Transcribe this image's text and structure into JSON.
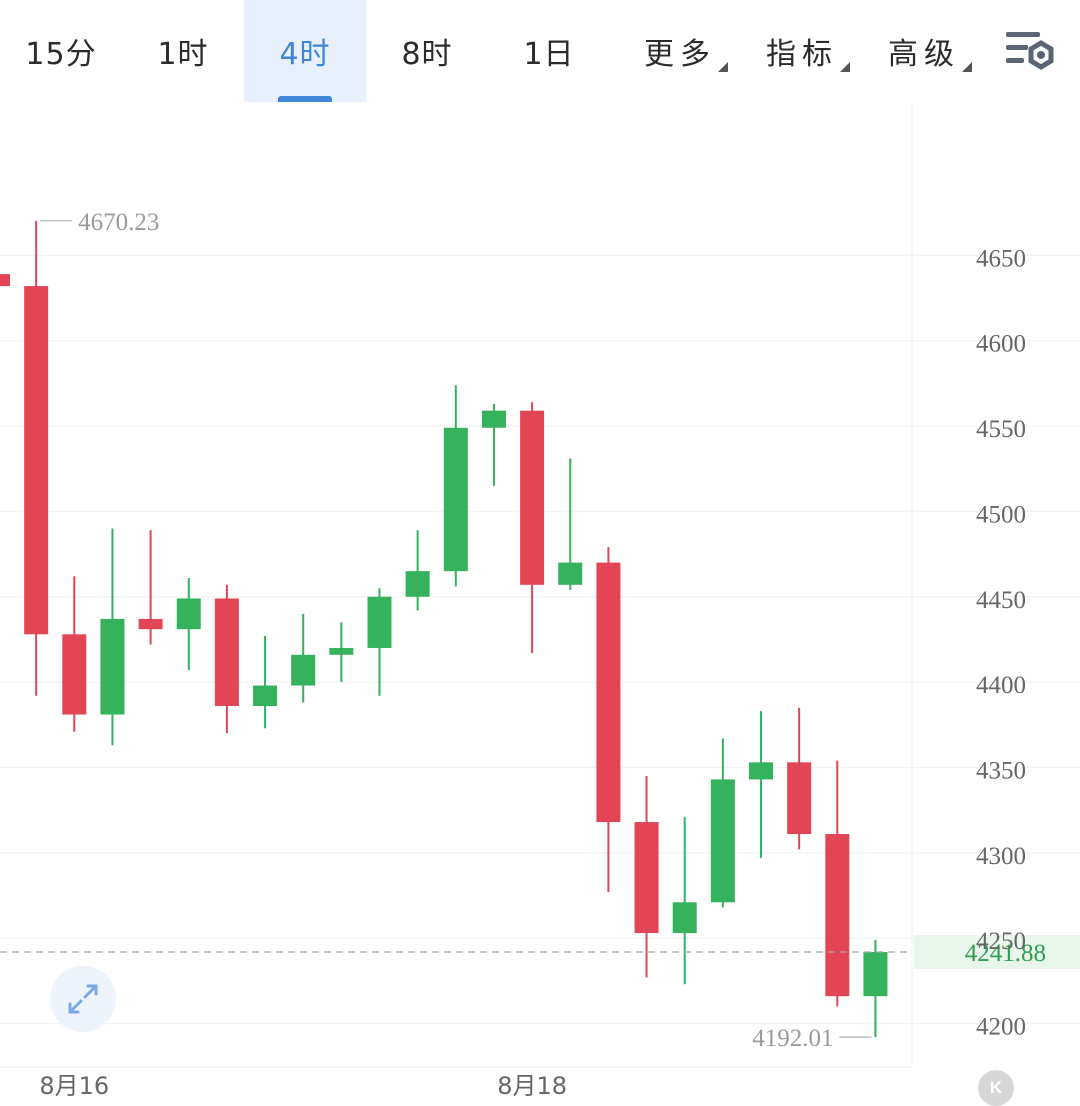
{
  "toolbar": {
    "tabs": [
      {
        "label": "15分"
      },
      {
        "label": "1时"
      },
      {
        "label": "4时"
      },
      {
        "label": "8时"
      },
      {
        "label": "1日"
      }
    ],
    "active_tab": "4时",
    "dropdowns": [
      {
        "label": "更多"
      },
      {
        "label": "指标"
      },
      {
        "label": "高级"
      }
    ],
    "settings_icon": "chart-settings-gear-icon"
  },
  "colors": {
    "up": "#35b25c",
    "down": "#e24654",
    "accent": "#3f86d8",
    "current_price_bg": "#e8f6ec",
    "current_price_text": "#2fa04f",
    "axis_text": "#666666",
    "annotation_text": "#9a9a9a"
  },
  "chart_data": {
    "type": "candlestick",
    "interval": "4时",
    "x_labels": [
      {
        "text": "8月16",
        "index": 2
      },
      {
        "text": "8月18",
        "index": 14
      }
    ],
    "y_ticks": [
      4200,
      4250,
      4300,
      4350,
      4400,
      4450,
      4500,
      4550,
      4600,
      4650
    ],
    "ylim": [
      4175,
      4725
    ],
    "grid": true,
    "high_annotation": {
      "value": 4670.23,
      "text": "4670.23"
    },
    "low_annotation": {
      "value": 4192.01,
      "text": "4192.01"
    },
    "current_price": {
      "value": 4241.88,
      "text": "4241.88"
    },
    "candles": [
      {
        "o": 4639,
        "h": 4640,
        "l": 4632,
        "c": 4632
      },
      {
        "o": 4632,
        "h": 4670.23,
        "l": 4392,
        "c": 4428
      },
      {
        "o": 4428,
        "h": 4462,
        "l": 4371,
        "c": 4381
      },
      {
        "o": 4381,
        "h": 4490,
        "l": 4363,
        "c": 4437
      },
      {
        "o": 4437,
        "h": 4489,
        "l": 4422,
        "c": 4431
      },
      {
        "o": 4431,
        "h": 4461,
        "l": 4407,
        "c": 4449
      },
      {
        "o": 4449,
        "h": 4457,
        "l": 4370,
        "c": 4386
      },
      {
        "o": 4386,
        "h": 4427,
        "l": 4373,
        "c": 4398
      },
      {
        "o": 4398,
        "h": 4440,
        "l": 4388,
        "c": 4416
      },
      {
        "o": 4416,
        "h": 4435,
        "l": 4400,
        "c": 4420
      },
      {
        "o": 4420,
        "h": 4455,
        "l": 4392,
        "c": 4450
      },
      {
        "o": 4450,
        "h": 4489,
        "l": 4442,
        "c": 4465
      },
      {
        "o": 4465,
        "h": 4574,
        "l": 4456,
        "c": 4549
      },
      {
        "o": 4549,
        "h": 4563,
        "l": 4515,
        "c": 4559
      },
      {
        "o": 4559,
        "h": 4564,
        "l": 4417,
        "c": 4457
      },
      {
        "o": 4457,
        "h": 4531,
        "l": 4454,
        "c": 4470
      },
      {
        "o": 4470,
        "h": 4479,
        "l": 4277,
        "c": 4318
      },
      {
        "o": 4318,
        "h": 4345,
        "l": 4227,
        "c": 4253
      },
      {
        "o": 4253,
        "h": 4321,
        "l": 4223,
        "c": 4271
      },
      {
        "o": 4271,
        "h": 4367,
        "l": 4268,
        "c": 4343
      },
      {
        "o": 4343,
        "h": 4383,
        "l": 4297,
        "c": 4353
      },
      {
        "o": 4353,
        "h": 4385,
        "l": 4302,
        "c": 4311
      },
      {
        "o": 4311,
        "h": 4354,
        "l": 4210,
        "c": 4216
      },
      {
        "o": 4216,
        "h": 4249,
        "l": 4192.01,
        "c": 4241.88
      }
    ]
  },
  "expand_icon": "expand-arrows-icon",
  "k_button_label": "K"
}
